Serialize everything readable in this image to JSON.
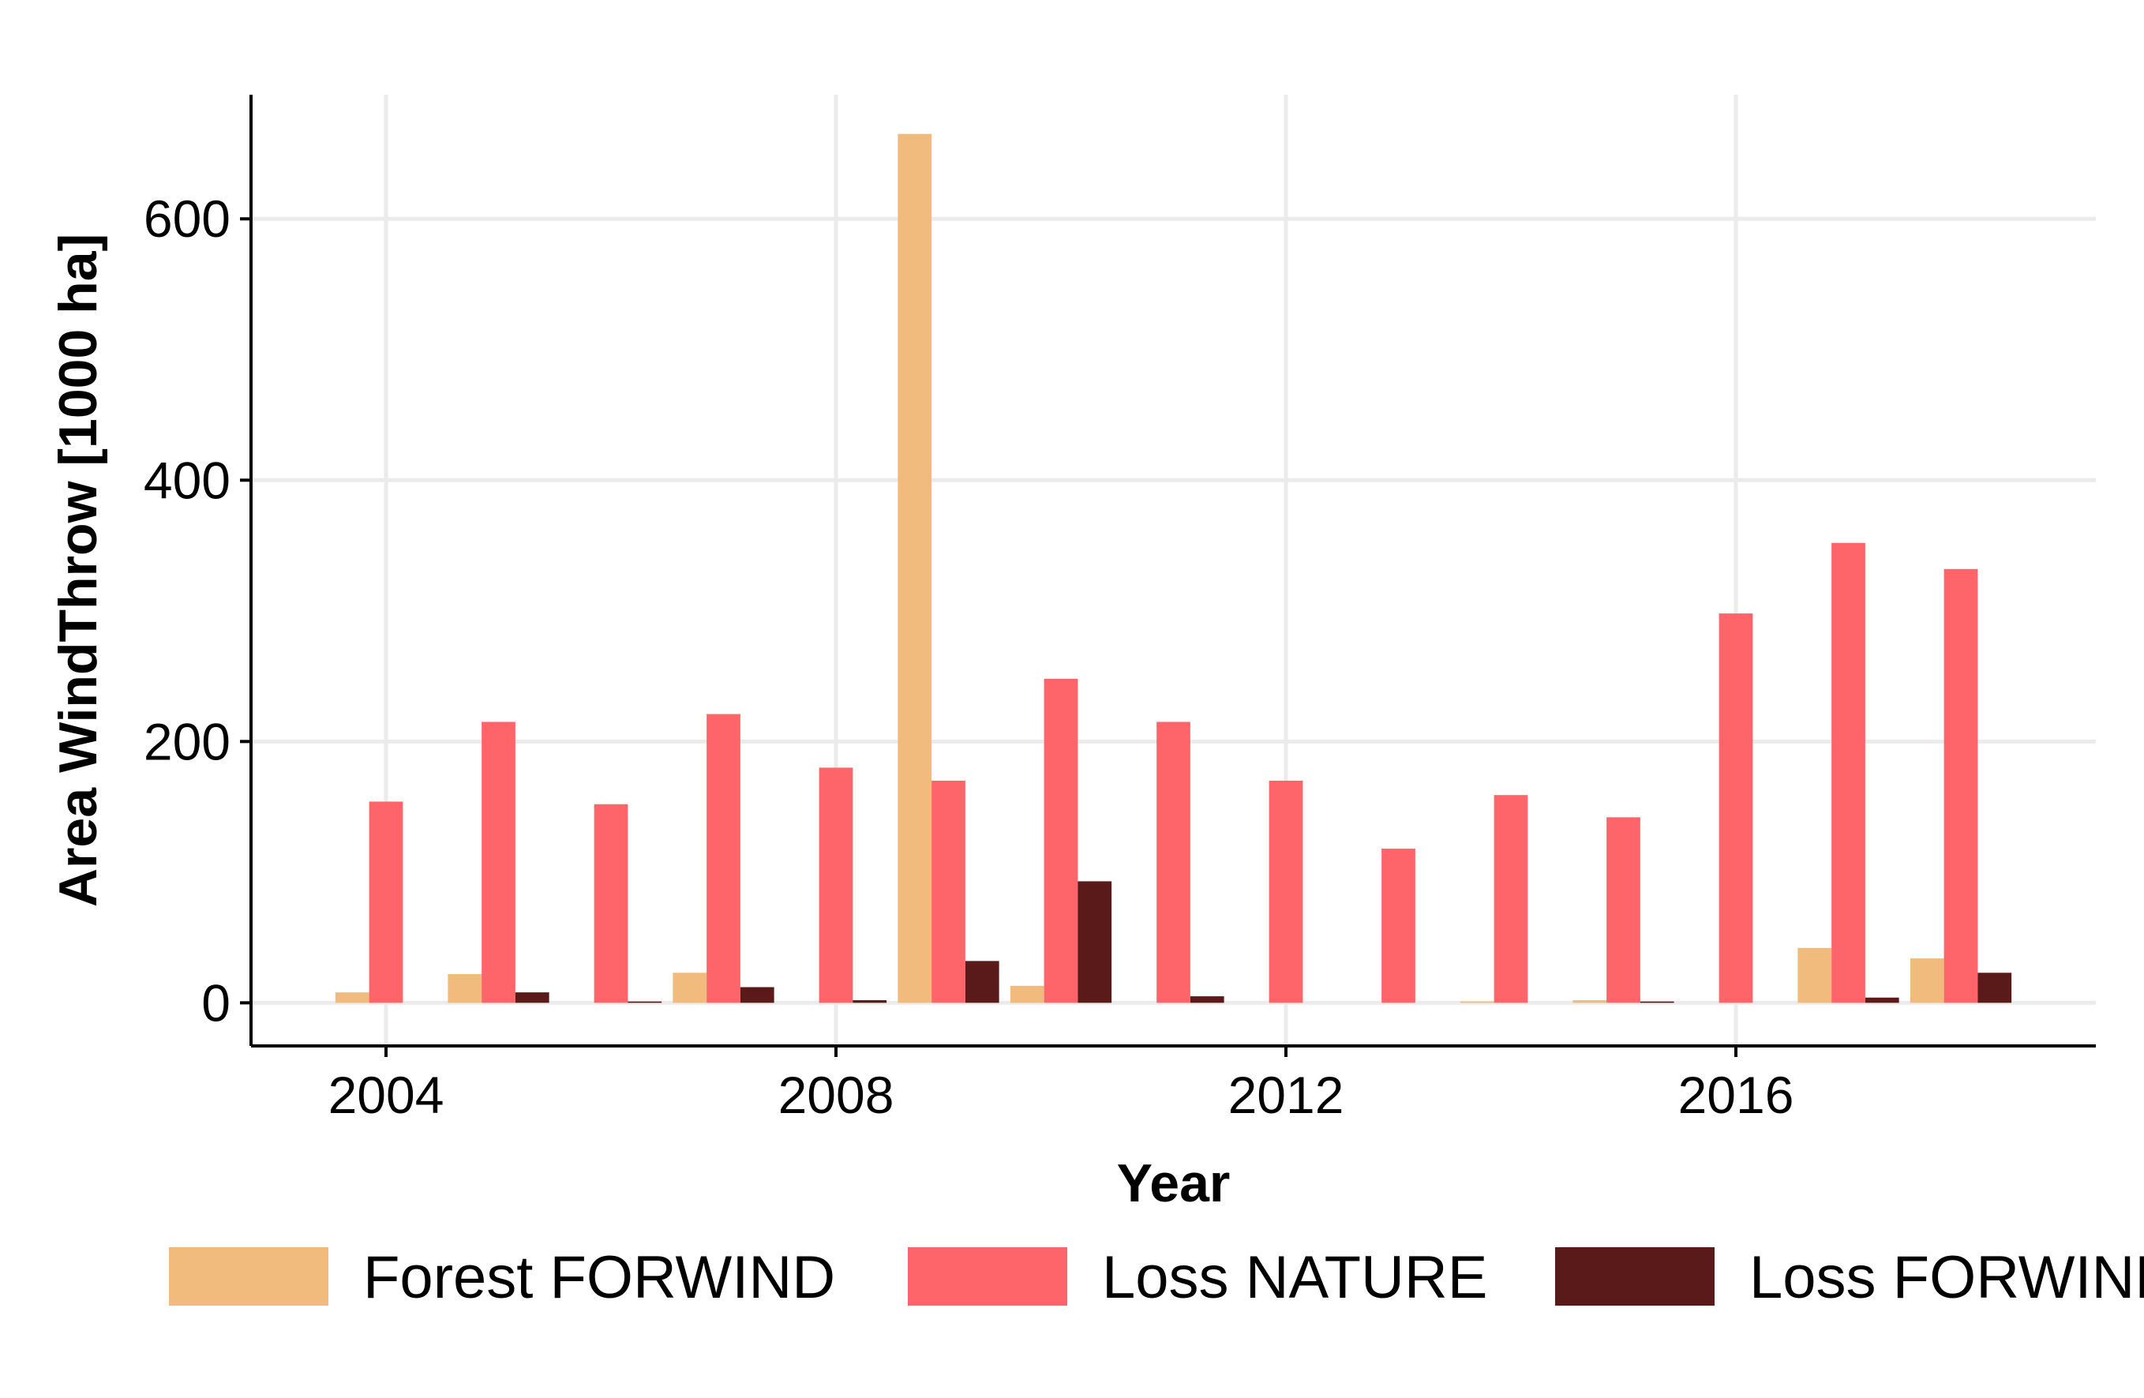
{
  "chart_data": {
    "type": "bar",
    "xlabel": "Year",
    "ylabel": "Area WindThrow [1000 ha]",
    "x": [
      2004,
      2005,
      2006,
      2007,
      2008,
      2009,
      2010,
      2011,
      2012,
      2013,
      2014,
      2015,
      2016,
      2017,
      2018
    ],
    "xlim": [
      2002.8,
      2019.2
    ],
    "ylim": [
      -33,
      695
    ],
    "xticks": [
      2004,
      2008,
      2012,
      2016
    ],
    "xtick_labels": [
      "2004",
      "2008",
      "2012",
      "2016"
    ],
    "yticks": [
      0,
      200,
      400,
      600
    ],
    "ytick_labels": [
      "0",
      "200",
      "400",
      "600"
    ],
    "grid": true,
    "legend_position": "bottom",
    "series": [
      {
        "name": "Forest FORWIND",
        "color": "#f2bb7e",
        "values": [
          8,
          22,
          0,
          23,
          0,
          665,
          13,
          0,
          0,
          0,
          1,
          2,
          0,
          42,
          34
        ]
      },
      {
        "name": "Loss NATURE",
        "color": "#fe656a",
        "values": [
          154,
          215,
          152,
          221,
          180,
          170,
          248,
          215,
          170,
          118,
          159,
          142,
          298,
          352,
          332
        ]
      },
      {
        "name": "Loss FORWIND",
        "color": "#5b1a1a",
        "values": [
          0,
          8,
          1,
          12,
          2,
          32,
          93,
          5,
          0,
          0,
          0,
          1,
          0,
          4,
          23
        ]
      }
    ]
  }
}
